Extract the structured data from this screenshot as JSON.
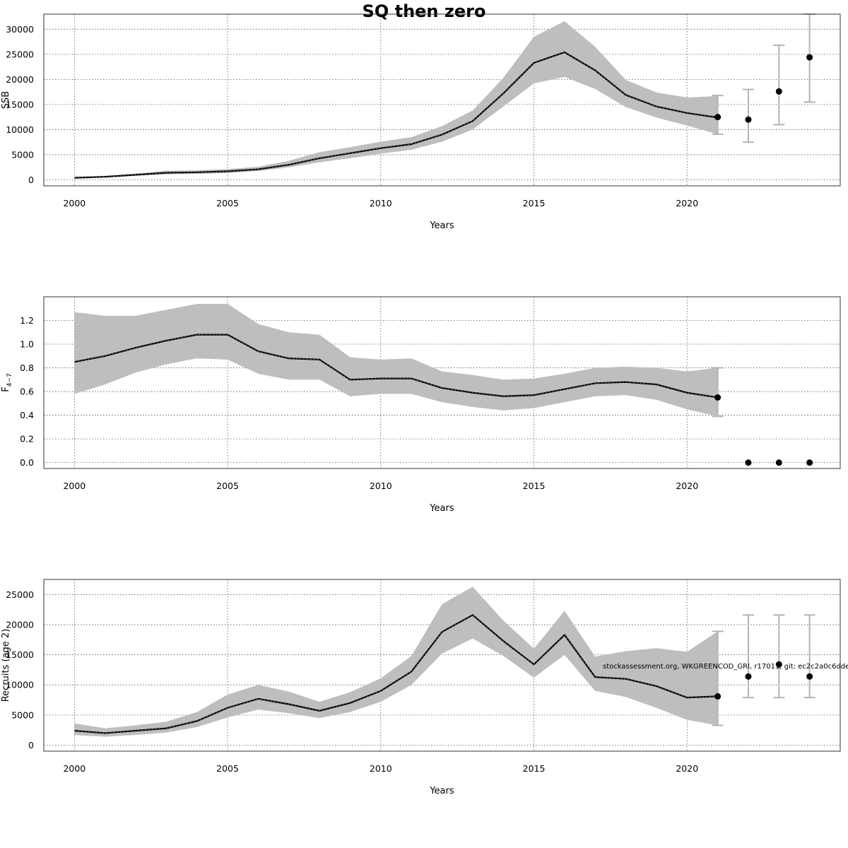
{
  "figure_title": "SQ then zero",
  "watermark": "stockassessment.org, WKGREENCOD_GRI, r17011, git: ec2c2a0c6dde",
  "colors": {
    "band": "#bebebe",
    "line": "#000000",
    "errorbar": "#b3b3b3",
    "grid": "#555555"
  },
  "chart_data": [
    {
      "type": "line",
      "title": "",
      "xlabel": "Years",
      "ylabel": "SSB",
      "xlim": [
        1999,
        2025
      ],
      "ylim": [
        -1200,
        33000
      ],
      "xticks": [
        2000,
        2005,
        2010,
        2015,
        2020
      ],
      "yticks": [
        0,
        5000,
        10000,
        15000,
        20000,
        25000,
        30000
      ],
      "grid": true,
      "series": [
        {
          "x": [
            2000,
            2001,
            2002,
            2003,
            2004,
            2005,
            2006,
            2007,
            2008,
            2009,
            2010,
            2011,
            2012,
            2013,
            2014,
            2015,
            2016,
            2017,
            2018,
            2019,
            2020,
            2021
          ],
          "values": [
            400,
            600,
            1000,
            1400,
            1500,
            1700,
            2100,
            3000,
            4300,
            5300,
            6300,
            7100,
            9000,
            11700,
            17200,
            23300,
            25400,
            21800,
            16900,
            14600,
            13300,
            12400
          ],
          "lower": [
            250,
            450,
            800,
            1100,
            1200,
            1350,
            1750,
            2500,
            3500,
            4300,
            5200,
            6000,
            7600,
            10000,
            14600,
            19200,
            20500,
            18100,
            14500,
            12400,
            10800,
            9100
          ],
          "upper": [
            600,
            800,
            1250,
            1800,
            1900,
            2150,
            2600,
            3800,
            5500,
            6500,
            7600,
            8500,
            10700,
            13800,
            20300,
            28500,
            31600,
            26500,
            19900,
            17400,
            16400,
            16700
          ]
        }
      ],
      "forecast": {
        "x": [
          2021,
          2022,
          2023,
          2024
        ],
        "values": [
          12500,
          12000,
          17600,
          24400
        ],
        "lower": [
          9100,
          7500,
          11000,
          15500
        ],
        "upper": [
          16800,
          18000,
          26800,
          33000
        ]
      }
    },
    {
      "type": "line",
      "title": "",
      "xlabel": "Years",
      "ylabel": "F4-7",
      "ylabel_main": "F",
      "ylabel_sub": "4−7",
      "xlim": [
        1999,
        2025
      ],
      "ylim": [
        -0.05,
        1.4
      ],
      "xticks": [
        2000,
        2005,
        2010,
        2015,
        2020
      ],
      "yticks": [
        0.0,
        0.2,
        0.4,
        0.6,
        0.8,
        1.0,
        1.2
      ],
      "grid": true,
      "series": [
        {
          "x": [
            2000,
            2001,
            2002,
            2003,
            2004,
            2005,
            2006,
            2007,
            2008,
            2009,
            2010,
            2011,
            2012,
            2013,
            2014,
            2015,
            2016,
            2017,
            2018,
            2019,
            2020,
            2021
          ],
          "values": [
            0.85,
            0.9,
            0.97,
            1.03,
            1.08,
            1.08,
            0.94,
            0.88,
            0.87,
            0.7,
            0.71,
            0.71,
            0.63,
            0.59,
            0.56,
            0.57,
            0.62,
            0.67,
            0.68,
            0.66,
            0.59,
            0.55
          ],
          "lower": [
            0.58,
            0.66,
            0.76,
            0.83,
            0.88,
            0.87,
            0.75,
            0.7,
            0.7,
            0.56,
            0.58,
            0.58,
            0.51,
            0.47,
            0.44,
            0.46,
            0.51,
            0.56,
            0.57,
            0.53,
            0.45,
            0.39
          ],
          "upper": [
            1.27,
            1.24,
            1.24,
            1.29,
            1.34,
            1.34,
            1.17,
            1.1,
            1.08,
            0.89,
            0.87,
            0.88,
            0.77,
            0.74,
            0.7,
            0.71,
            0.75,
            0.8,
            0.81,
            0.8,
            0.77,
            0.8
          ]
        }
      ],
      "forecast": {
        "x": [
          2021,
          2022,
          2023,
          2024
        ],
        "values": [
          0.55,
          0.0,
          0.0,
          0.0
        ],
        "lower": [
          0.39,
          0.0,
          0.0,
          0.0
        ],
        "upper": [
          0.8,
          0.0,
          0.0,
          0.0
        ]
      }
    },
    {
      "type": "line",
      "title": "",
      "xlabel": "Years",
      "ylabel": "Recruits (age 2)",
      "xlim": [
        1999,
        2025
      ],
      "ylim": [
        -1000,
        27500
      ],
      "xticks": [
        2000,
        2005,
        2010,
        2015,
        2020
      ],
      "yticks": [
        0,
        5000,
        10000,
        15000,
        20000,
        25000
      ],
      "grid": true,
      "series": [
        {
          "x": [
            2000,
            2001,
            2002,
            2003,
            2004,
            2005,
            2006,
            2007,
            2008,
            2009,
            2010,
            2011,
            2012,
            2013,
            2014,
            2015,
            2016,
            2017,
            2018,
            2019,
            2020,
            2021
          ],
          "values": [
            2400,
            2000,
            2400,
            2800,
            4000,
            6200,
            7700,
            6800,
            5700,
            7000,
            9000,
            12200,
            18800,
            21600,
            17300,
            13400,
            18300,
            11300,
            11000,
            9800,
            7900,
            8100
          ],
          "lower": [
            1700,
            1400,
            1700,
            2100,
            3000,
            4600,
            5900,
            5300,
            4500,
            5500,
            7200,
            10000,
            15200,
            17700,
            14800,
            11200,
            15000,
            9000,
            8000,
            6200,
            4200,
            3300
          ],
          "upper": [
            3600,
            2800,
            3300,
            3900,
            5500,
            8400,
            10000,
            8900,
            7200,
            8800,
            11100,
            14800,
            23400,
            26300,
            20700,
            16000,
            22300,
            14700,
            15600,
            16100,
            15500,
            18900
          ]
        }
      ],
      "forecast": {
        "x": [
          2021,
          2022,
          2023,
          2024
        ],
        "values": [
          8100,
          11400,
          13400,
          11400
        ],
        "lower": [
          3300,
          7900,
          7900,
          7900
        ],
        "upper": [
          18900,
          21600,
          21600,
          21600
        ]
      }
    }
  ]
}
